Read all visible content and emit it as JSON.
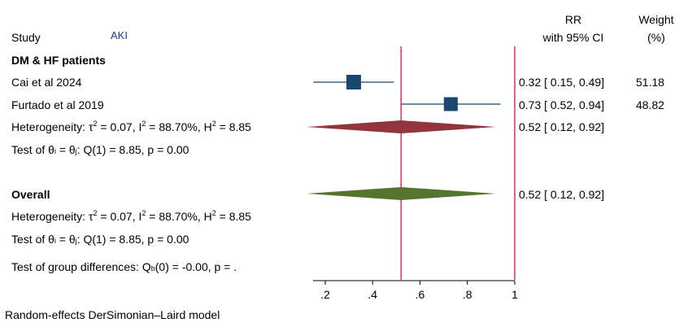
{
  "chart_data": {
    "type": "forest",
    "header": {
      "study": "Study",
      "outcome": "AKI",
      "effect_line1": "RR",
      "effect_line2": "with 95% CI",
      "weight_line1": "Weight",
      "weight_line2": "(%)"
    },
    "group": {
      "title": "DM & HF patients",
      "studies": [
        {
          "label": "Cai et al 2024",
          "rr": 0.32,
          "lo": 0.15,
          "hi": 0.49,
          "ci_text": "0.32 [ 0.15, 0.49]",
          "weight": "51.18"
        },
        {
          "label": "Furtado et al 2019",
          "rr": 0.73,
          "lo": 0.52,
          "hi": 0.94,
          "ci_text": "0.73 [ 0.52, 0.94]",
          "weight": "48.82"
        }
      ],
      "pooled": {
        "rr": 0.52,
        "lo": 0.12,
        "hi": 0.92,
        "ci_text": "0.52 [ 0.12, 0.92]"
      },
      "heterogeneity": {
        "pre": "Heterogeneity: τ",
        "tau_sup": "2",
        "tau_val": " = 0.07, I",
        "i_sup": "2",
        "i_val": " = 88.70%, H",
        "h_sup": "2",
        "h_val": " = 8.85"
      },
      "test": {
        "pre": "Test of θ",
        "sub1": "i",
        "mid": " = θ",
        "sub2": "j",
        "post": ": Q(1) = 8.85, p = 0.00"
      }
    },
    "overall": {
      "title": "Overall",
      "pooled": {
        "rr": 0.52,
        "lo": 0.12,
        "hi": 0.92,
        "ci_text": "0.52 [ 0.12, 0.92]"
      },
      "heterogeneity": {
        "pre": "Heterogeneity: τ",
        "tau_sup": "2",
        "tau_val": " = 0.07, I",
        "i_sup": "2",
        "i_val": " = 88.70%, H",
        "h_sup": "2",
        "h_val": " = 8.85"
      },
      "test": {
        "pre": "Test of θ",
        "sub1": "i",
        "mid": " = θ",
        "sub2": "j",
        "post": ": Q(1) = 8.85, p = 0.00"
      },
      "group_diff": {
        "pre": "Test of group differences: Q",
        "sub": "b",
        "post": "(0) = -0.00, p = ."
      }
    },
    "x_axis": {
      "ticks": [
        0.2,
        0.4,
        0.6,
        0.8,
        1
      ],
      "tick_labels": [
        ".2",
        ".4",
        ".6",
        ".8",
        "1"
      ],
      "range": [
        0.2,
        1
      ]
    },
    "null_line": 1,
    "overall_line": 0.52,
    "footnote": "Random-effects DerSimonian–Laird model",
    "colors": {
      "marker": "#1a476f",
      "ci": "#1a476f",
      "group_diamond": "#90353b",
      "overall_diamond": "#55752f",
      "ref_line": "#c10534"
    }
  }
}
